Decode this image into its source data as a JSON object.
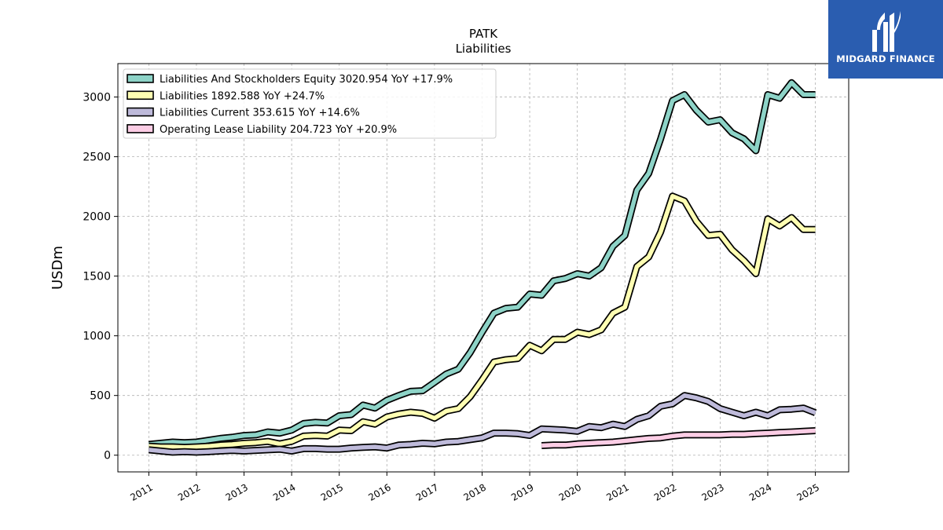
{
  "chart_data": {
    "type": "line",
    "title": "PATK",
    "subtitle": "Liabilities",
    "ylabel": "USDm",
    "xlabel": "",
    "xlim": [
      2010.35,
      2025.7
    ],
    "ylim": [
      -140,
      3280
    ],
    "yticks": [
      0,
      500,
      1000,
      1500,
      2000,
      2500,
      3000
    ],
    "xticks": [
      "2011",
      "2012",
      "2013",
      "2014",
      "2015",
      "2016",
      "2017",
      "2018",
      "2019",
      "2020",
      "2021",
      "2022",
      "2023",
      "2024",
      "2025"
    ],
    "grid": true,
    "legend_position": "top-left",
    "series": [
      {
        "name": "Liabilities And Stockholders Equity  3020.954 YoY +17.9%",
        "color": "#8dd3c7",
        "x": [
          2011.0,
          2011.25,
          2011.5,
          2011.75,
          2012.0,
          2012.25,
          2012.5,
          2012.75,
          2013.0,
          2013.25,
          2013.5,
          2013.75,
          2014.0,
          2014.25,
          2014.5,
          2014.75,
          2015.0,
          2015.25,
          2015.5,
          2015.75,
          2016.0,
          2016.25,
          2016.5,
          2016.75,
          2017.0,
          2017.25,
          2017.5,
          2017.75,
          2018.0,
          2018.25,
          2018.5,
          2018.75,
          2019.0,
          2019.25,
          2019.5,
          2019.75,
          2020.0,
          2020.25,
          2020.5,
          2020.75,
          2021.0,
          2021.25,
          2021.5,
          2021.75,
          2022.0,
          2022.25,
          2022.5,
          2022.75,
          2023.0,
          2023.25,
          2023.5,
          2023.75,
          2024.0,
          2024.25,
          2024.5,
          2024.75,
          2025.0
        ],
        "values": [
          90,
          100,
          110,
          105,
          110,
          125,
          140,
          150,
          165,
          170,
          195,
          185,
          210,
          265,
          275,
          270,
          330,
          340,
          420,
          395,
          460,
          500,
          535,
          540,
          610,
          680,
          720,
          860,
          1030,
          1190,
          1230,
          1240,
          1350,
          1340,
          1460,
          1480,
          1520,
          1500,
          1570,
          1750,
          1840,
          2220,
          2360,
          2650,
          2970,
          3020,
          2890,
          2790,
          2810,
          2700,
          2650,
          2550,
          3020,
          2990,
          3120,
          3020,
          3020
        ]
      },
      {
        "name": "Liabilities  1892.588 YoY +24.7%",
        "color": "#ffffb3",
        "x": [
          2011.0,
          2011.25,
          2011.5,
          2011.75,
          2012.0,
          2012.25,
          2012.5,
          2012.75,
          2013.0,
          2013.25,
          2013.5,
          2013.75,
          2014.0,
          2014.25,
          2014.5,
          2014.75,
          2015.0,
          2015.25,
          2015.5,
          2015.75,
          2016.0,
          2016.25,
          2016.5,
          2016.75,
          2017.0,
          2017.25,
          2017.5,
          2017.75,
          2018.0,
          2018.25,
          2018.5,
          2018.75,
          2019.0,
          2019.25,
          2019.5,
          2019.75,
          2020.0,
          2020.25,
          2020.5,
          2020.75,
          2021.0,
          2021.25,
          2021.5,
          2021.75,
          2022.0,
          2022.25,
          2022.5,
          2022.75,
          2023.0,
          2023.25,
          2023.5,
          2023.75,
          2024.0,
          2024.25,
          2024.5,
          2024.75,
          2025.0
        ],
        "values": [
          75,
          70,
          70,
          65,
          70,
          75,
          85,
          90,
          100,
          105,
          115,
          95,
          115,
          160,
          165,
          160,
          210,
          205,
          280,
          260,
          320,
          345,
          360,
          350,
          310,
          370,
          390,
          490,
          630,
          780,
          800,
          810,
          920,
          875,
          970,
          970,
          1030,
          1010,
          1050,
          1190,
          1240,
          1580,
          1660,
          1870,
          2170,
          2130,
          1960,
          1840,
          1850,
          1720,
          1630,
          1520,
          1980,
          1920,
          1990,
          1890,
          1890
        ]
      },
      {
        "name": "Liabilities Current  353.615 YoY +14.6%",
        "color": "#bebada",
        "x": [
          2011.0,
          2011.25,
          2011.5,
          2011.75,
          2012.0,
          2012.25,
          2012.5,
          2012.75,
          2013.0,
          2013.25,
          2013.5,
          2013.75,
          2014.0,
          2014.25,
          2014.5,
          2014.75,
          2015.0,
          2015.25,
          2015.5,
          2015.75,
          2016.0,
          2016.25,
          2016.5,
          2016.75,
          2017.0,
          2017.25,
          2017.5,
          2017.75,
          2018.0,
          2018.25,
          2018.5,
          2018.75,
          2019.0,
          2019.25,
          2019.5,
          2019.75,
          2020.0,
          2020.25,
          2020.5,
          2020.75,
          2021.0,
          2021.25,
          2021.5,
          2021.75,
          2022.0,
          2022.25,
          2022.5,
          2022.75,
          2023.0,
          2023.25,
          2023.5,
          2023.75,
          2024.0,
          2024.25,
          2024.5,
          2024.75,
          2025.0
        ],
        "values": [
          45,
          35,
          25,
          30,
          25,
          30,
          35,
          40,
          35,
          40,
          45,
          50,
          35,
          55,
          55,
          50,
          50,
          60,
          65,
          70,
          60,
          85,
          90,
          100,
          95,
          110,
          115,
          130,
          145,
          185,
          185,
          180,
          165,
          220,
          215,
          210,
          200,
          240,
          230,
          260,
          240,
          300,
          330,
          410,
          430,
          500,
          480,
          450,
          390,
          360,
          330,
          360,
          330,
          380,
          385,
          395,
          355
        ]
      },
      {
        "name": "Operating Lease Liability  204.723 YoY +20.9%",
        "color": "#fccde5",
        "x": [
          2019.25,
          2019.5,
          2019.75,
          2020.0,
          2020.25,
          2020.5,
          2020.75,
          2021.0,
          2021.25,
          2021.5,
          2021.75,
          2022.0,
          2022.25,
          2022.5,
          2022.75,
          2023.0,
          2023.25,
          2023.5,
          2023.75,
          2024.0,
          2024.25,
          2024.5,
          2024.75,
          2025.0
        ],
        "values": [
          80,
          85,
          85,
          95,
          100,
          105,
          110,
          120,
          130,
          140,
          145,
          160,
          170,
          170,
          170,
          170,
          175,
          175,
          180,
          185,
          190,
          195,
          200,
          205
        ]
      }
    ]
  },
  "logo": {
    "text": "MIDGARD FINANCE",
    "background": "#2a5db0"
  }
}
